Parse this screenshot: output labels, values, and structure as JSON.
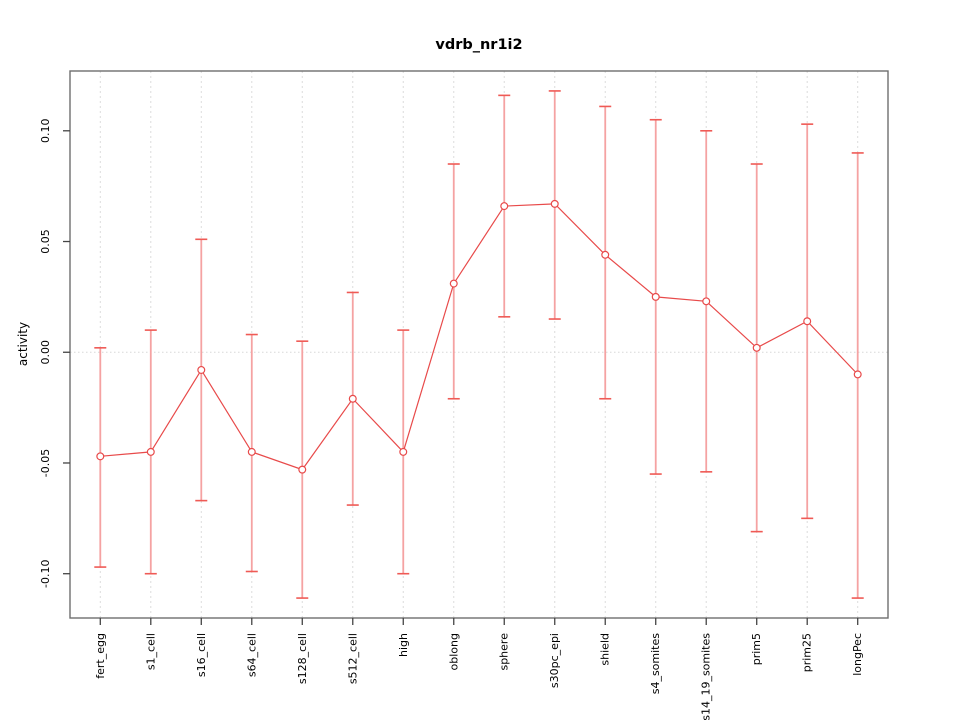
{
  "chart_data": {
    "type": "line",
    "title": "vdrb_nr1i2",
    "xlabel": "",
    "ylabel": "activity",
    "ylim": [
      -0.12,
      0.127
    ],
    "grid": "vertical dashed at each category, dotted horizontal at zero",
    "legend": "none",
    "marker": "open-circle",
    "error_bars": true,
    "y_ticks": {
      "values": [
        0.1,
        0.05,
        0.0,
        -0.05,
        -0.1
      ],
      "labels": [
        "0.10",
        "0.05",
        "0.00",
        "-0.05",
        "-0.10"
      ]
    },
    "categories": [
      "fert_egg",
      "s1_cell",
      "s16_cell",
      "s64_cell",
      "s128_cell",
      "s512_cell",
      "high",
      "oblong",
      "sphere",
      "s30pc_epi",
      "shield",
      "s4_somites",
      "s14_19_somites",
      "prim5",
      "prim25",
      "longPec"
    ],
    "points": [
      {
        "label": "fert_egg",
        "mean": -0.047,
        "upper": 0.002,
        "lower": -0.097
      },
      {
        "label": "s1_cell",
        "mean": -0.045,
        "upper": 0.01,
        "lower": -0.1
      },
      {
        "label": "s16_cell",
        "mean": -0.008,
        "upper": 0.051,
        "lower": -0.067
      },
      {
        "label": "s64_cell",
        "mean": -0.045,
        "upper": 0.008,
        "lower": -0.099
      },
      {
        "label": "s128_cell",
        "mean": -0.053,
        "upper": 0.005,
        "lower": -0.111
      },
      {
        "label": "s512_cell",
        "mean": -0.021,
        "upper": 0.027,
        "lower": -0.069
      },
      {
        "label": "high",
        "mean": -0.045,
        "upper": 0.01,
        "lower": -0.1
      },
      {
        "label": "oblong",
        "mean": 0.031,
        "upper": 0.085,
        "lower": -0.021
      },
      {
        "label": "sphere",
        "mean": 0.066,
        "upper": 0.116,
        "lower": 0.016
      },
      {
        "label": "s30pc_epi",
        "mean": 0.067,
        "upper": 0.118,
        "lower": 0.015
      },
      {
        "label": "shield",
        "mean": 0.044,
        "upper": 0.111,
        "lower": -0.021
      },
      {
        "label": "s4_somites",
        "mean": 0.025,
        "upper": 0.105,
        "lower": -0.055
      },
      {
        "label": "s14_19_somites",
        "mean": 0.023,
        "upper": 0.1,
        "lower": -0.054
      },
      {
        "label": "prim5",
        "mean": 0.002,
        "upper": 0.085,
        "lower": -0.081
      },
      {
        "label": "prim25",
        "mean": 0.014,
        "upper": 0.103,
        "lower": -0.075
      },
      {
        "label": "longPec",
        "mean": -0.01,
        "upper": 0.09,
        "lower": -0.111
      }
    ],
    "colors": {
      "line": "#e84a4a",
      "marker_stroke": "#e84a4a",
      "error_bar": "#f5a2a2",
      "error_cap": "#ef5a55",
      "grid": "#dcdcdc",
      "zero_line": "#d8d8d8",
      "box": "#6e6e6e",
      "tick": "#444444",
      "text": "#000000"
    }
  }
}
